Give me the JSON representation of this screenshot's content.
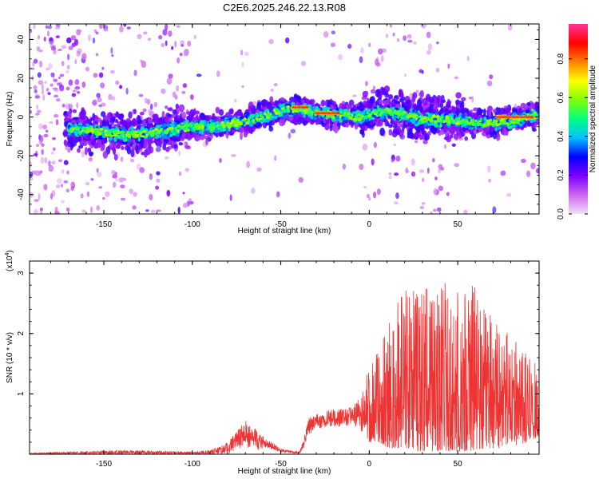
{
  "chart_data": [
    {
      "type": "heatmap",
      "title": "C2E6.2025.246.22.13.R08",
      "xlabel": "Height of straight line (km)",
      "ylabel": "Frequency (Hz)",
      "xlim": [
        -192,
        96
      ],
      "ylim": [
        -50,
        48
      ],
      "xticks": [
        -150,
        -100,
        -50,
        0,
        50
      ],
      "xtick_labels": [
        "-150",
        "-100",
        "-50",
        "0",
        "50"
      ],
      "yticks": [
        -40,
        -20,
        0,
        20,
        40
      ],
      "ytick_labels": [
        "-40",
        "-20",
        "0",
        "20",
        "40"
      ],
      "colorbar": {
        "label": "Normalized spectral amplitude",
        "range": [
          0.0,
          0.98
        ],
        "ticks": [
          0.0,
          0.2,
          0.4,
          0.6,
          0.8
        ],
        "tick_labels": [
          "0.0",
          "0.2",
          "0.4",
          "0.6",
          "0.8"
        ],
        "colors": [
          "#f0e0f8",
          "#cc66ee",
          "#8000ff",
          "#0000ff",
          "#00c0ff",
          "#00ff80",
          "#80ff00",
          "#ffff00",
          "#ff8000",
          "#ff0000",
          "#ff3399"
        ]
      },
      "ridge": {
        "description": "center frequency of the dominant signal vs height",
        "x": [
          -170,
          -160,
          -150,
          -140,
          -130,
          -120,
          -110,
          -100,
          -90,
          -80,
          -70,
          -60,
          -50,
          -45,
          -40,
          -35,
          -30,
          -25,
          -20,
          -15,
          -10,
          -5,
          0,
          10,
          20,
          30,
          40,
          50,
          60,
          70,
          80,
          90,
          95
        ],
        "y": [
          -6,
          -7,
          -8,
          -9,
          -9,
          -8,
          -6,
          -5,
          -5,
          -4,
          -2,
          0,
          3,
          4,
          4,
          3,
          2,
          2,
          1,
          1,
          0,
          0,
          1,
          3,
          1,
          -1,
          -1,
          -2,
          -3,
          -3,
          -2,
          0,
          1
        ],
        "peak_segments": [
          {
            "x_start": -43,
            "x_end": -35,
            "freq": 5
          },
          {
            "x_start": -30,
            "x_end": -17,
            "freq": 2
          },
          {
            "x_start": 72,
            "x_end": 93,
            "freq": 0
          }
        ]
      }
    },
    {
      "type": "line",
      "xlabel": "Height of straight line (km)",
      "ylabel": "SNR (10 * v/v)",
      "scale_label": "(x10",
      "scale_exp": "4",
      "scale_close": ")",
      "xlim": [
        -192,
        96
      ],
      "ylim": [
        0,
        3.2
      ],
      "xticks": [
        -150,
        -100,
        -50,
        0,
        50
      ],
      "xtick_labels": [
        "-150",
        "-100",
        "-50",
        "0",
        "50"
      ],
      "yticks": [
        1,
        2,
        3
      ],
      "ytick_labels": [
        "1",
        "2",
        "3"
      ],
      "series": [
        {
          "name": "SNR",
          "color": "#ee3333",
          "envelope_x": [
            -192,
            -160,
            -140,
            -110,
            -100,
            -90,
            -85,
            -80,
            -75,
            -70,
            -65,
            -60,
            -50,
            -45,
            -40,
            -37,
            -35,
            -30,
            -20,
            -10,
            -5,
            0,
            5,
            10,
            15,
            20,
            25,
            30,
            35,
            40,
            45,
            50,
            55,
            60,
            65,
            70,
            75,
            80,
            85,
            90,
            96
          ],
          "envelope_y": [
            0.02,
            0.05,
            0.07,
            0.05,
            0.04,
            0.07,
            0.12,
            0.2,
            0.42,
            0.56,
            0.45,
            0.3,
            0.1,
            0.06,
            0.05,
            0.25,
            0.58,
            0.68,
            0.75,
            0.78,
            0.95,
            1.5,
            1.7,
            2.2,
            2.5,
            2.7,
            2.8,
            2.9,
            2.6,
            2.8,
            2.9,
            2.7,
            2.8,
            2.9,
            2.5,
            2.3,
            2.1,
            2.0,
            1.8,
            1.6,
            1.5
          ],
          "floor_y": [
            0.0,
            0.0,
            0.0,
            0.0,
            0.0,
            0.0,
            0.0,
            0.0,
            0.08,
            0.12,
            0.08,
            0.04,
            0.0,
            0.0,
            0.0,
            0.1,
            0.3,
            0.42,
            0.45,
            0.45,
            0.4,
            0.2,
            0.2,
            0.1,
            0.1,
            0.1,
            0.05,
            0.05,
            0.05,
            0.05,
            0.05,
            0.05,
            0.05,
            0.05,
            0.05,
            0.1,
            0.1,
            0.15,
            0.15,
            0.2,
            0.3
          ]
        }
      ]
    }
  ]
}
